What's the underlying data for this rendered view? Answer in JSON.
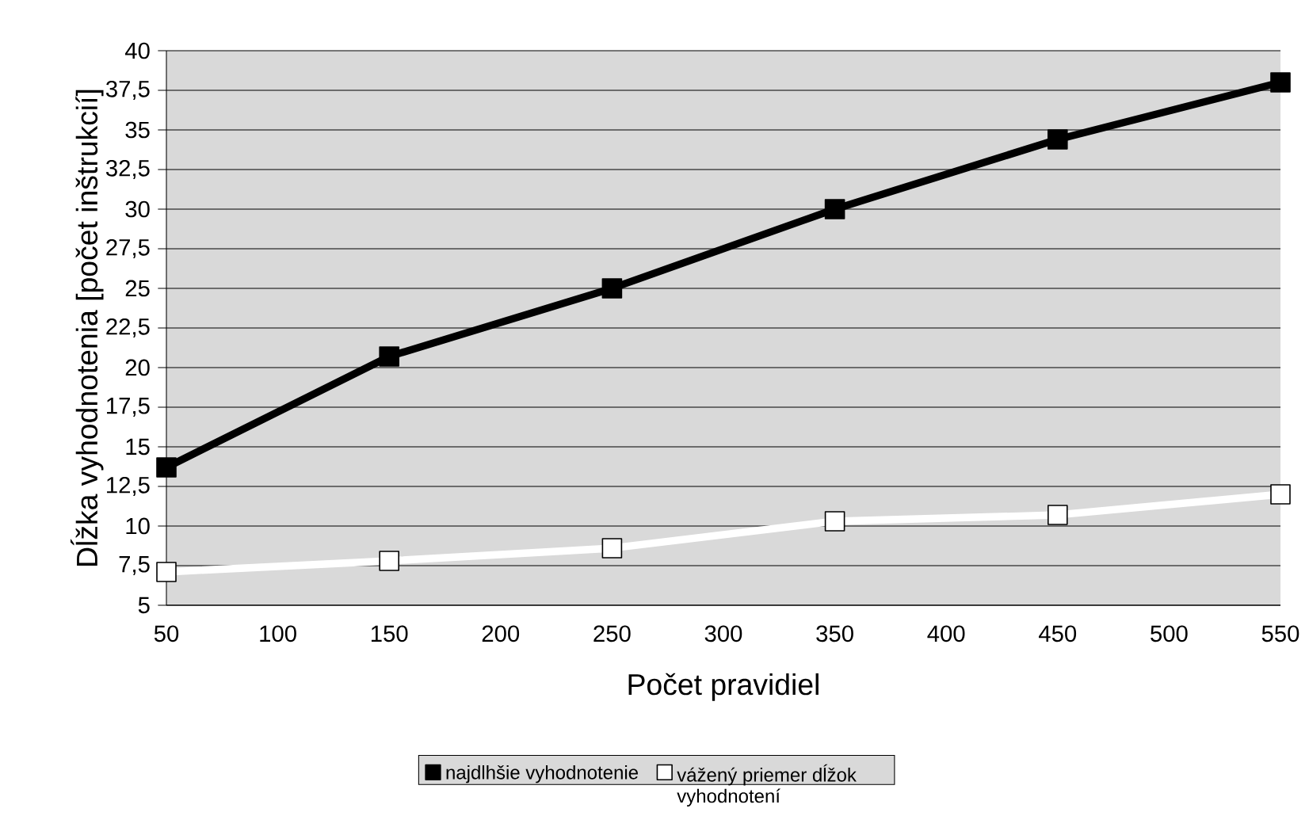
{
  "chart_data": {
    "type": "line",
    "xlabel": "Počet pravidiel",
    "ylabel": "Dĺžka vyhodnotenia [počet inštrukcií]",
    "x": [
      50,
      150,
      250,
      350,
      450,
      550
    ],
    "series": [
      {
        "name": "najdlhšie vyhodnotenie",
        "color": "#000000",
        "values": [
          13.7,
          20.7,
          25,
          30,
          34.4,
          38
        ]
      },
      {
        "name": "vážený priemer dĺžok vyhodnotení",
        "color": "#ffffff",
        "values": [
          7.1,
          7.8,
          8.6,
          10.3,
          10.7,
          12
        ]
      }
    ],
    "xlim": [
      50,
      550
    ],
    "xticks": [
      50,
      100,
      150,
      200,
      250,
      300,
      350,
      400,
      450,
      500,
      550
    ],
    "ylim": [
      5,
      40
    ],
    "yticks": [
      5,
      {
        "value": 7.5,
        "label": "7,5"
      },
      10,
      {
        "value": 12.5,
        "label": "12,5"
      },
      15,
      {
        "value": 17.5,
        "label": "17,5"
      },
      20,
      {
        "value": 22.5,
        "label": "22,5"
      },
      25,
      {
        "value": 27.5,
        "label": "27,5"
      },
      30,
      {
        "value": 32.5,
        "label": "32,5"
      },
      35,
      {
        "value": 37.5,
        "label": "37,5"
      },
      40
    ],
    "grid": "y",
    "legend": "bottom",
    "marker": "square",
    "line_style": "solid"
  }
}
